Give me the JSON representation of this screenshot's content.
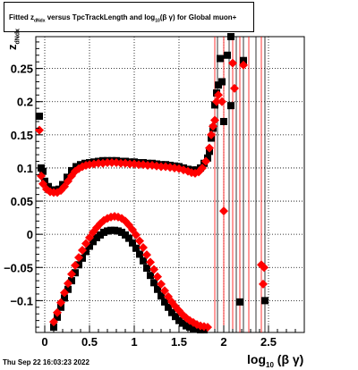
{
  "chart_data": {
    "type": "scatter",
    "title": "Fitted z_dNdx versus TpcTrackLength and log_10(β γ) for Global muon+",
    "title_parts": {
      "main": "Fitted  z",
      "sub1": "dNdx",
      "mid": "  versus TpcTrackLength and log",
      "sub2": "10",
      "tail": "(β  γ) for Global muon+"
    },
    "xlabel": {
      "main": "log",
      "sub": "10",
      "tail": " (β γ)"
    },
    "ylabel": {
      "main": "z",
      "sub": "dNdx"
    },
    "xlim": [
      -0.1,
      2.9
    ],
    "ylim": [
      -0.148,
      0.298
    ],
    "x_ticks": [
      "0",
      "0.5",
      "1",
      "1.5",
      "2",
      "2.5"
    ],
    "x_tick_values": [
      0,
      0.5,
      1,
      1.5,
      2,
      2.5
    ],
    "y_ticks": [
      "−0.1",
      "−0.05",
      "0",
      "0.05",
      "0.1",
      "0.15",
      "0.2",
      "0.25"
    ],
    "y_tick_values": [
      -0.1,
      -0.05,
      0,
      0.05,
      0.1,
      0.15,
      0.2,
      0.25
    ],
    "grid": true,
    "colors": {
      "black_series": "#000000",
      "red_series": "#ff0000"
    },
    "series": [
      {
        "color": "#000000",
        "points": [
          [
            -0.06,
            0.178
          ],
          [
            -0.04,
            0.1
          ],
          [
            -0.02,
            0.095
          ],
          [
            0.0,
            0.08
          ],
          [
            0.04,
            0.072
          ],
          [
            0.08,
            0.067
          ],
          [
            0.12,
            0.066
          ],
          [
            0.16,
            0.068
          ],
          [
            0.2,
            0.075
          ],
          [
            0.25,
            0.086
          ],
          [
            0.3,
            0.096
          ],
          [
            0.35,
            0.102
          ],
          [
            0.4,
            0.105
          ],
          [
            0.45,
            0.107
          ],
          [
            0.5,
            0.108
          ],
          [
            0.55,
            0.109
          ],
          [
            0.6,
            0.11
          ],
          [
            0.65,
            0.111
          ],
          [
            0.7,
            0.111
          ],
          [
            0.75,
            0.111
          ],
          [
            0.8,
            0.111
          ],
          [
            0.85,
            0.11
          ],
          [
            0.9,
            0.11
          ],
          [
            0.95,
            0.109
          ],
          [
            1.0,
            0.109
          ],
          [
            1.05,
            0.108
          ],
          [
            1.1,
            0.108
          ],
          [
            1.15,
            0.107
          ],
          [
            1.2,
            0.107
          ],
          [
            1.25,
            0.106
          ],
          [
            1.3,
            0.105
          ],
          [
            1.35,
            0.105
          ],
          [
            1.4,
            0.104
          ],
          [
            1.45,
            0.103
          ],
          [
            1.5,
            0.102
          ],
          [
            1.55,
            0.1
          ],
          [
            1.6,
            0.098
          ],
          [
            1.65,
            0.097
          ],
          [
            1.7,
            0.097
          ],
          [
            1.74,
            0.1
          ],
          [
            1.78,
            0.107
          ],
          [
            1.82,
            0.115
          ],
          [
            1.84,
            0.125
          ],
          [
            1.86,
            0.145
          ],
          [
            1.88,
            0.16
          ],
          [
            1.9,
            0.195
          ],
          [
            1.92,
            0.213
          ],
          [
            1.94,
            0.225
          ],
          [
            1.96,
            0.265
          ],
          [
            1.98,
            0.23
          ],
          [
            2.0,
            0.17
          ],
          [
            2.04,
            0.27
          ],
          [
            2.08,
            0.298
          ],
          [
            2.22,
            0.262
          ],
          [
            2.08,
            0.194
          ],
          [
            2.18,
            -0.102
          ],
          [
            2.46,
            -0.1
          ],
          [
            0.1,
            -0.14
          ],
          [
            0.14,
            -0.125
          ],
          [
            0.18,
            -0.11
          ],
          [
            0.22,
            -0.096
          ],
          [
            0.26,
            -0.083
          ],
          [
            0.3,
            -0.07
          ],
          [
            0.34,
            -0.058
          ],
          [
            0.38,
            -0.046
          ],
          [
            0.42,
            -0.036
          ],
          [
            0.46,
            -0.026
          ],
          [
            0.5,
            -0.018
          ],
          [
            0.54,
            -0.011
          ],
          [
            0.58,
            -0.005
          ],
          [
            0.62,
            -0.001
          ],
          [
            0.66,
            0.003
          ],
          [
            0.7,
            0.005
          ],
          [
            0.74,
            0.006
          ],
          [
            0.78,
            0.006
          ],
          [
            0.82,
            0.005
          ],
          [
            0.86,
            0.003
          ],
          [
            0.9,
            -0.001
          ],
          [
            0.94,
            -0.006
          ],
          [
            0.98,
            -0.013
          ],
          [
            1.02,
            -0.021
          ],
          [
            1.06,
            -0.03
          ],
          [
            1.1,
            -0.04
          ],
          [
            1.14,
            -0.051
          ],
          [
            1.18,
            -0.062
          ],
          [
            1.22,
            -0.073
          ],
          [
            1.26,
            -0.083
          ],
          [
            1.3,
            -0.093
          ],
          [
            1.34,
            -0.102
          ],
          [
            1.38,
            -0.11
          ],
          [
            1.42,
            -0.118
          ],
          [
            1.46,
            -0.124
          ],
          [
            1.5,
            -0.13
          ],
          [
            1.54,
            -0.134
          ],
          [
            1.58,
            -0.138
          ],
          [
            1.62,
            -0.14
          ],
          [
            1.66,
            -0.142
          ],
          [
            1.7,
            -0.143
          ],
          [
            1.74,
            -0.144
          ],
          [
            1.78,
            -0.144
          ]
        ]
      },
      {
        "color": "#ff0000",
        "points": [
          [
            -0.06,
            0.157
          ],
          [
            -0.04,
            0.088
          ],
          [
            -0.02,
            0.076
          ],
          [
            0.02,
            0.068
          ],
          [
            0.06,
            0.064
          ],
          [
            0.1,
            0.063
          ],
          [
            0.14,
            0.063
          ],
          [
            0.18,
            0.066
          ],
          [
            0.22,
            0.072
          ],
          [
            0.26,
            0.08
          ],
          [
            0.3,
            0.088
          ],
          [
            0.34,
            0.095
          ],
          [
            0.38,
            0.099
          ],
          [
            0.42,
            0.102
          ],
          [
            0.46,
            0.104
          ],
          [
            0.5,
            0.105
          ],
          [
            0.55,
            0.106
          ],
          [
            0.6,
            0.107
          ],
          [
            0.65,
            0.107
          ],
          [
            0.7,
            0.108
          ],
          [
            0.75,
            0.108
          ],
          [
            0.8,
            0.108
          ],
          [
            0.85,
            0.107
          ],
          [
            0.9,
            0.107
          ],
          [
            0.95,
            0.106
          ],
          [
            1.0,
            0.106
          ],
          [
            1.05,
            0.105
          ],
          [
            1.1,
            0.105
          ],
          [
            1.15,
            0.104
          ],
          [
            1.2,
            0.104
          ],
          [
            1.25,
            0.103
          ],
          [
            1.3,
            0.102
          ],
          [
            1.35,
            0.102
          ],
          [
            1.4,
            0.101
          ],
          [
            1.45,
            0.1
          ],
          [
            1.5,
            0.099
          ],
          [
            1.55,
            0.097
          ],
          [
            1.6,
            0.095
          ],
          [
            1.64,
            0.093
          ],
          [
            1.68,
            0.092
          ],
          [
            1.72,
            0.094
          ],
          [
            1.76,
            0.1
          ],
          [
            1.8,
            0.11
          ],
          [
            1.84,
            0.13
          ],
          [
            1.86,
            0.15
          ],
          [
            1.88,
            0.163
          ],
          [
            1.9,
            0.172
          ],
          [
            1.92,
            0.2
          ],
          [
            1.94,
            0.21
          ],
          [
            1.98,
            0.2
          ],
          [
            2.0,
            0.035
          ],
          [
            2.1,
            0.258
          ],
          [
            2.12,
            0.22
          ],
          [
            2.22,
            0.255
          ],
          [
            2.42,
            -0.046
          ],
          [
            2.45,
            -0.05
          ],
          [
            2.44,
            -0.075
          ],
          [
            0.1,
            -0.132
          ],
          [
            0.14,
            -0.118
          ],
          [
            0.18,
            -0.103
          ],
          [
            0.22,
            -0.088
          ],
          [
            0.26,
            -0.074
          ],
          [
            0.3,
            -0.06
          ],
          [
            0.34,
            -0.047
          ],
          [
            0.38,
            -0.035
          ],
          [
            0.42,
            -0.024
          ],
          [
            0.46,
            -0.014
          ],
          [
            0.5,
            -0.005
          ],
          [
            0.54,
            0.003
          ],
          [
            0.58,
            0.01
          ],
          [
            0.62,
            0.016
          ],
          [
            0.66,
            0.021
          ],
          [
            0.7,
            0.024
          ],
          [
            0.74,
            0.026
          ],
          [
            0.78,
            0.027
          ],
          [
            0.82,
            0.026
          ],
          [
            0.86,
            0.024
          ],
          [
            0.9,
            0.02
          ],
          [
            0.94,
            0.014
          ],
          [
            0.98,
            0.007
          ],
          [
            1.02,
            -0.001
          ],
          [
            1.06,
            -0.01
          ],
          [
            1.1,
            -0.02
          ],
          [
            1.14,
            -0.031
          ],
          [
            1.18,
            -0.042
          ],
          [
            1.22,
            -0.053
          ],
          [
            1.26,
            -0.064
          ],
          [
            1.3,
            -0.075
          ],
          [
            1.34,
            -0.085
          ],
          [
            1.38,
            -0.094
          ],
          [
            1.42,
            -0.102
          ],
          [
            1.46,
            -0.109
          ],
          [
            1.5,
            -0.115
          ],
          [
            1.54,
            -0.121
          ],
          [
            1.58,
            -0.126
          ],
          [
            1.62,
            -0.13
          ],
          [
            1.66,
            -0.133
          ],
          [
            1.7,
            -0.136
          ],
          [
            1.74,
            -0.138
          ],
          [
            1.78,
            -0.139
          ],
          [
            1.82,
            -0.14
          ]
        ]
      }
    ],
    "error_bars": [
      {
        "x": 1.9,
        "y_low": -0.148,
        "y_high": 0.298,
        "color": "#ff0000"
      },
      {
        "x": 1.93,
        "y_low": -0.148,
        "y_high": 0.298,
        "color": "#000000"
      },
      {
        "x": 2.0,
        "y_low": -0.148,
        "y_high": 0.298,
        "color": "#ff0000"
      },
      {
        "x": 2.06,
        "y_low": -0.148,
        "y_high": 0.298,
        "color": "#000000"
      },
      {
        "x": 2.1,
        "y_low": -0.148,
        "y_high": 0.298,
        "color": "#ff0000"
      },
      {
        "x": 2.14,
        "y_low": -0.148,
        "y_high": 0.298,
        "color": "#000000"
      },
      {
        "x": 2.18,
        "y_low": -0.148,
        "y_high": 0.298,
        "color": "#ff0000"
      },
      {
        "x": 2.22,
        "y_low": -0.148,
        "y_high": 0.298,
        "color": "#000000"
      },
      {
        "x": 2.28,
        "y_low": -0.148,
        "y_high": 0.298,
        "color": "#ff0000"
      },
      {
        "x": 2.36,
        "y_low": -0.148,
        "y_high": 0.298,
        "color": "#000000"
      },
      {
        "x": 2.42,
        "y_low": -0.148,
        "y_high": 0.298,
        "color": "#ff0000"
      },
      {
        "x": 2.46,
        "y_low": -0.148,
        "y_high": 0.298,
        "color": "#000000"
      }
    ]
  },
  "footer": {
    "timestamp": "Thu Sep 22 16:03:23 2022"
  }
}
